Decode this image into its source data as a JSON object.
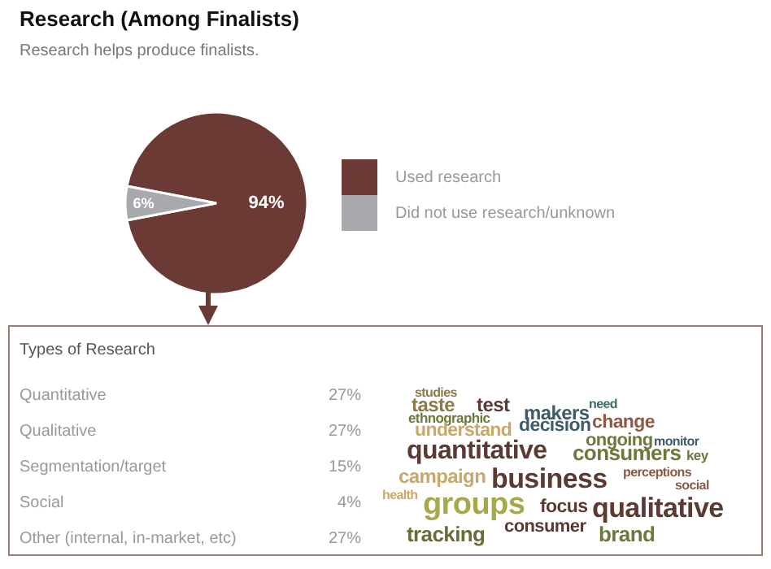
{
  "chart_data": [
    {
      "type": "pie",
      "title": "Research (Among Finalists)",
      "subtitle": "Research helps produce finalists.",
      "categories": [
        "Used research",
        "Did not use research/unknown"
      ],
      "values": [
        94,
        6
      ],
      "colors": [
        "#6b3a35",
        "#a7a9ac"
      ],
      "value_labels": [
        "94%",
        "6%"
      ],
      "legend": "right"
    },
    {
      "type": "other",
      "title": "Types of Research",
      "categories": [
        "Quantitative",
        "Qualitative",
        "Segmentation/target",
        "Social",
        "Other (internal, in-market, etc)"
      ],
      "value_labels": [
        "27%",
        "27%",
        "15%",
        "4%",
        "27%"
      ]
    },
    {
      "type": "other",
      "annotations": [
        "studies",
        "taste",
        "test",
        "need",
        "ethnographic",
        "makers",
        "understand",
        "decision",
        "change",
        "ongoing",
        "monitor",
        "quantitative",
        "consumers",
        "key",
        "campaign",
        "business",
        "perceptions",
        "health",
        "groups",
        "social",
        "focus",
        "qualitative",
        "tracking",
        "consumer",
        "brand"
      ]
    }
  ]
}
